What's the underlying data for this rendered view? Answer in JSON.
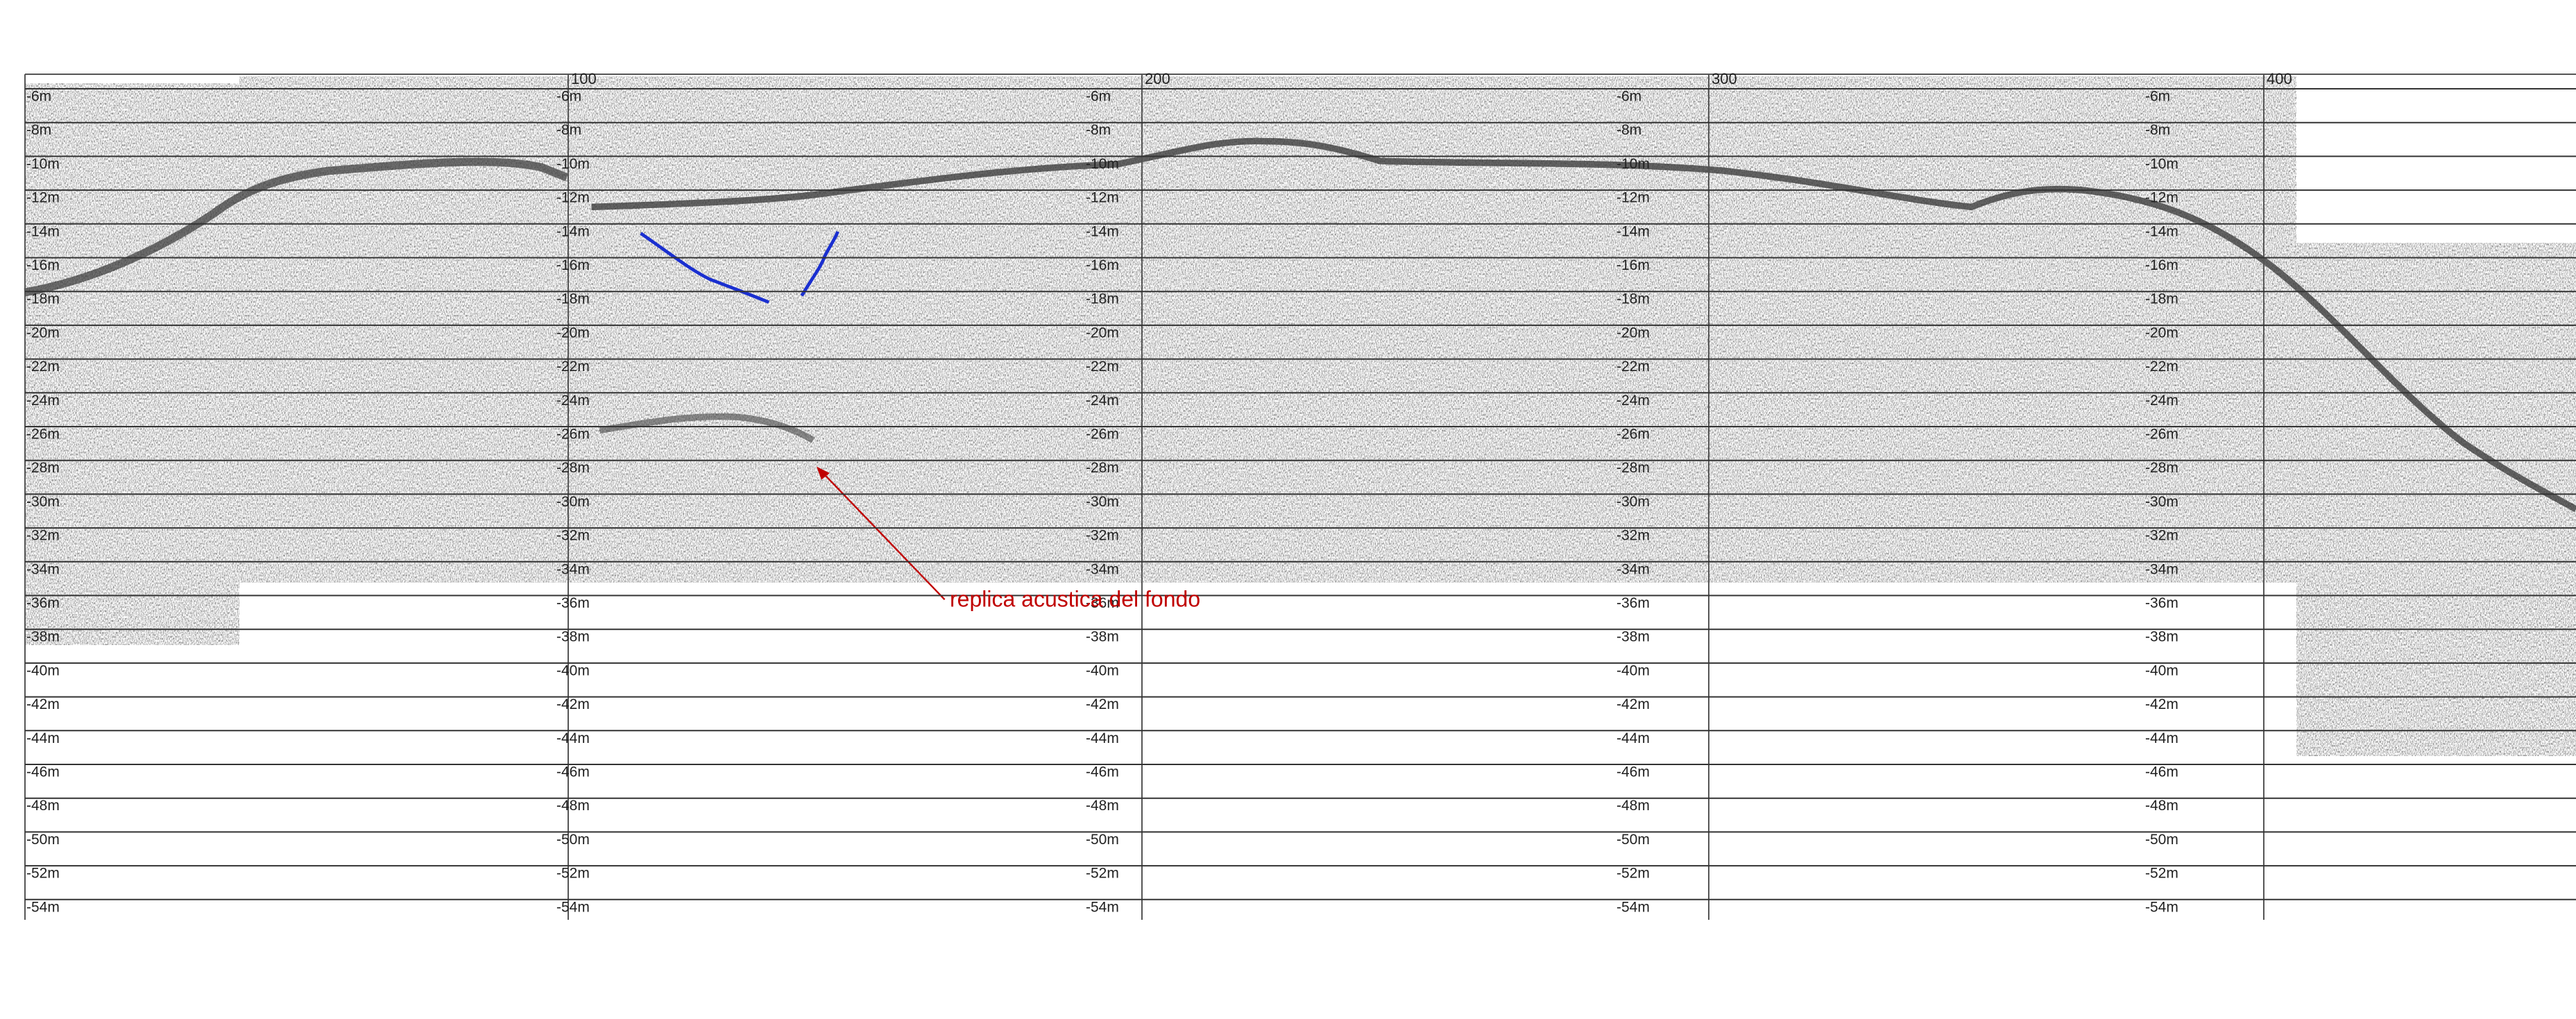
{
  "depth_labels": [
    "-6m",
    "-8m",
    "-10m",
    "-12m",
    "-14m",
    "-16m",
    "-18m",
    "-20m",
    "-22m",
    "-24m",
    "-26m",
    "-28m",
    "-30m",
    "-32m",
    "-34m",
    "-36m",
    "-38m",
    "-40m",
    "-42m",
    "-44m",
    "-46m",
    "-48m",
    "-50m",
    "-52m",
    "-54m"
  ],
  "trace_markers": [
    "100",
    "200",
    "300",
    "400"
  ],
  "annotation": "replica acustica del fondo"
}
